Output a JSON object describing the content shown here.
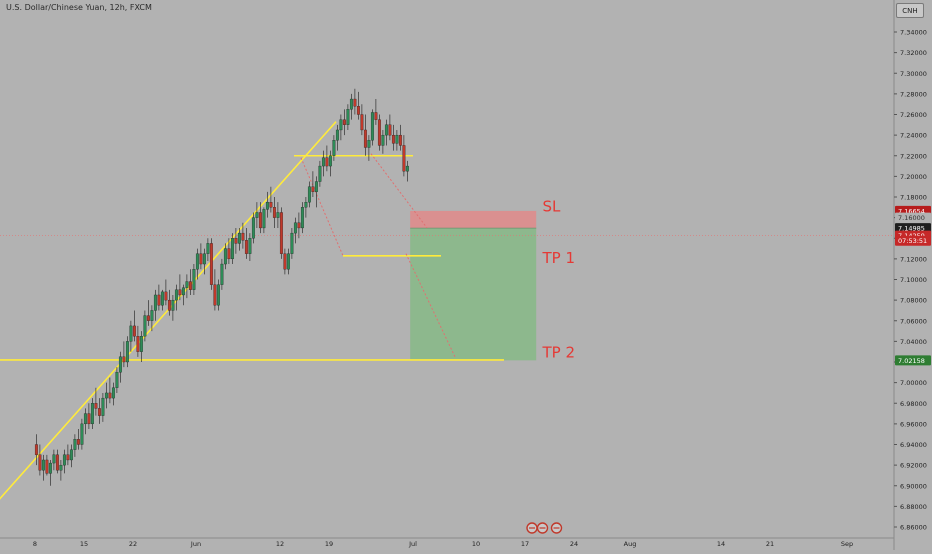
{
  "header": {
    "symbol_title": "U.S. Dollar/Chinese Yuan, 12h, FXCM",
    "currency_badge": "CNH"
  },
  "colors": {
    "background": "#b2b2b2",
    "bull_candle": "#2e8b57",
    "bear_candle": "#c0392b",
    "trend_line": "#ffeb3b",
    "label_red": "#e53935",
    "stop_zone": "#e08a8a",
    "target_zone": "#86b886",
    "current_price_line": "#e57373",
    "projection_line": "#e07070"
  },
  "chart_data": {
    "type": "candlestick",
    "title": "U.S. Dollar/Chinese Yuan, 12h, FXCM",
    "xlabel": "",
    "ylabel": "",
    "ylim": [
      6.85,
      7.36
    ],
    "grid": false,
    "y_ticks": [
      "7.34000",
      "7.32000",
      "7.30000",
      "7.28000",
      "7.26000",
      "7.24000",
      "7.22000",
      "7.20000",
      "7.18000",
      "7.16000",
      "7.14000",
      "7.12000",
      "7.10000",
      "7.08000",
      "7.06000",
      "7.04000",
      "7.02000",
      "7.00000",
      "6.98000",
      "6.96000",
      "6.94000",
      "6.92000",
      "6.90000",
      "6.88000",
      "6.86000"
    ],
    "x_ticks": [
      {
        "label": "8",
        "x": 8
      },
      {
        "label": "15",
        "x": 15
      },
      {
        "label": "22",
        "x": 22
      },
      {
        "label": "Jun",
        "x": 31
      },
      {
        "label": "12",
        "x": 43
      },
      {
        "label": "19",
        "x": 50
      },
      {
        "label": "Jul",
        "x": 62
      },
      {
        "label": "10",
        "x": 71
      },
      {
        "label": "17",
        "x": 78
      },
      {
        "label": "24",
        "x": 85
      },
      {
        "label": "Aug",
        "x": 93
      },
      {
        "label": "14",
        "x": 106
      },
      {
        "label": "21",
        "x": 113
      },
      {
        "label": "Sep",
        "x": 124
      }
    ],
    "x_range": [
      4.5,
      133
    ],
    "candles": [
      [
        4.0,
        6.94,
        6.95,
        6.92,
        6.93
      ],
      [
        4.5,
        6.93,
        6.94,
        6.91,
        6.915
      ],
      [
        5.0,
        6.915,
        6.93,
        6.905,
        6.925
      ],
      [
        5.5,
        6.925,
        6.93,
        6.91,
        6.912
      ],
      [
        6.0,
        6.912,
        6.925,
        6.9,
        6.922
      ],
      [
        6.5,
        6.922,
        6.935,
        6.915,
        6.93
      ],
      [
        7.0,
        6.93,
        6.935,
        6.912,
        6.915
      ],
      [
        7.5,
        6.915,
        6.925,
        6.905,
        6.92
      ],
      [
        8.0,
        6.92,
        6.935,
        6.912,
        6.93
      ],
      [
        8.5,
        6.93,
        6.94,
        6.92,
        6.925
      ],
      [
        9.0,
        6.925,
        6.94,
        6.918,
        6.935
      ],
      [
        9.5,
        6.935,
        6.95,
        6.928,
        6.945
      ],
      [
        10.0,
        6.945,
        6.955,
        6.935,
        6.94
      ],
      [
        10.5,
        6.94,
        6.965,
        6.935,
        6.96
      ],
      [
        11.0,
        6.96,
        6.975,
        6.95,
        6.97
      ],
      [
        11.5,
        6.97,
        6.98,
        6.955,
        6.96
      ],
      [
        12.0,
        6.96,
        6.985,
        6.955,
        6.98
      ],
      [
        12.5,
        6.98,
        6.995,
        6.968,
        6.975
      ],
      [
        13.0,
        6.975,
        6.985,
        6.96,
        6.968
      ],
      [
        13.5,
        6.968,
        6.99,
        6.962,
        6.985
      ],
      [
        14.0,
        6.985,
        7.0,
        6.975,
        6.99
      ],
      [
        14.5,
        6.99,
        7.005,
        6.98,
        6.985
      ],
      [
        15.0,
        6.985,
        7.0,
        6.978,
        6.995
      ],
      [
        15.5,
        6.995,
        7.015,
        6.99,
        7.01
      ],
      [
        16.0,
        7.01,
        7.03,
        7.0,
        7.025
      ],
      [
        16.5,
        7.025,
        7.04,
        7.015,
        7.02
      ],
      [
        17.0,
        7.02,
        7.045,
        7.015,
        7.04
      ],
      [
        17.5,
        7.04,
        7.06,
        7.03,
        7.055
      ],
      [
        18.0,
        7.055,
        7.07,
        7.04,
        7.045
      ],
      [
        18.5,
        7.045,
        7.055,
        7.025,
        7.03
      ],
      [
        19.0,
        7.03,
        7.05,
        7.02,
        7.045
      ],
      [
        19.5,
        7.045,
        7.07,
        7.04,
        7.065
      ],
      [
        20.0,
        7.065,
        7.08,
        7.055,
        7.06
      ],
      [
        20.5,
        7.06,
        7.075,
        7.05,
        7.07
      ],
      [
        21.0,
        7.07,
        7.09,
        7.06,
        7.085
      ],
      [
        21.5,
        7.085,
        7.095,
        7.07,
        7.075
      ],
      [
        22.0,
        7.075,
        7.09,
        7.07,
        7.088
      ],
      [
        22.5,
        7.088,
        7.1,
        7.075,
        7.08
      ],
      [
        23.0,
        7.08,
        7.09,
        7.065,
        7.07
      ],
      [
        23.5,
        7.07,
        7.085,
        7.06,
        7.08
      ],
      [
        24.0,
        7.08,
        7.095,
        7.07,
        7.09
      ],
      [
        24.5,
        7.09,
        7.105,
        7.08,
        7.085
      ],
      [
        25.0,
        7.085,
        7.095,
        7.075,
        7.092
      ],
      [
        25.5,
        7.092,
        7.105,
        7.082,
        7.098
      ],
      [
        26.0,
        7.098,
        7.11,
        7.085,
        7.09
      ],
      [
        26.5,
        7.09,
        7.115,
        7.085,
        7.11
      ],
      [
        27.0,
        7.11,
        7.13,
        7.1,
        7.125
      ],
      [
        27.5,
        7.125,
        7.135,
        7.11,
        7.115
      ],
      [
        28.0,
        7.115,
        7.13,
        7.105,
        7.125
      ],
      [
        28.5,
        7.125,
        7.14,
        7.118,
        7.135
      ],
      [
        29.0,
        7.135,
        7.14,
        7.09,
        7.095
      ],
      [
        29.5,
        7.095,
        7.11,
        7.07,
        7.075
      ],
      [
        30.0,
        7.075,
        7.1,
        7.07,
        7.095
      ],
      [
        30.5,
        7.095,
        7.12,
        7.09,
        7.115
      ],
      [
        31.0,
        7.115,
        7.135,
        7.11,
        7.13
      ],
      [
        31.5,
        7.13,
        7.14,
        7.115,
        7.12
      ],
      [
        32.0,
        7.12,
        7.145,
        7.115,
        7.14
      ],
      [
        32.5,
        7.14,
        7.15,
        7.125,
        7.135
      ],
      [
        33.0,
        7.135,
        7.15,
        7.128,
        7.145
      ],
      [
        33.5,
        7.145,
        7.155,
        7.13,
        7.138
      ],
      [
        34.0,
        7.138,
        7.15,
        7.12,
        7.125
      ],
      [
        34.5,
        7.125,
        7.145,
        7.118,
        7.14
      ],
      [
        35.0,
        7.14,
        7.165,
        7.135,
        7.16
      ],
      [
        35.5,
        7.16,
        7.175,
        7.15,
        7.165
      ],
      [
        36.0,
        7.165,
        7.175,
        7.145,
        7.15
      ],
      [
        36.5,
        7.15,
        7.17,
        7.145,
        7.168
      ],
      [
        37.0,
        7.168,
        7.185,
        7.16,
        7.175
      ],
      [
        37.5,
        7.175,
        7.19,
        7.165,
        7.17
      ],
      [
        38.0,
        7.17,
        7.18,
        7.15,
        7.16
      ],
      [
        38.5,
        7.16,
        7.175,
        7.15,
        7.165
      ],
      [
        39.0,
        7.165,
        7.17,
        7.12,
        7.125
      ],
      [
        39.5,
        7.125,
        7.13,
        7.105,
        7.11
      ],
      [
        40.0,
        7.11,
        7.13,
        7.105,
        7.125
      ],
      [
        40.5,
        7.125,
        7.15,
        7.12,
        7.145
      ],
      [
        41.0,
        7.145,
        7.16,
        7.135,
        7.155
      ],
      [
        41.5,
        7.155,
        7.165,
        7.14,
        7.15
      ],
      [
        42.0,
        7.15,
        7.175,
        7.145,
        7.17
      ],
      [
        42.5,
        7.17,
        7.18,
        7.16,
        7.175
      ],
      [
        43.0,
        7.175,
        7.195,
        7.17,
        7.19
      ],
      [
        43.5,
        7.19,
        7.205,
        7.18,
        7.185
      ],
      [
        44.0,
        7.185,
        7.2,
        7.17,
        7.195
      ],
      [
        44.5,
        7.195,
        7.215,
        7.19,
        7.21
      ],
      [
        45.0,
        7.21,
        7.225,
        7.2,
        7.218
      ],
      [
        45.5,
        7.218,
        7.23,
        7.205,
        7.21
      ],
      [
        46.0,
        7.21,
        7.225,
        7.2,
        7.22
      ],
      [
        46.5,
        7.22,
        7.24,
        7.215,
        7.235
      ],
      [
        47.0,
        7.235,
        7.25,
        7.225,
        7.245
      ],
      [
        47.5,
        7.245,
        7.26,
        7.235,
        7.255
      ],
      [
        48.0,
        7.255,
        7.265,
        7.24,
        7.25
      ],
      [
        48.5,
        7.25,
        7.27,
        7.245,
        7.265
      ],
      [
        49.0,
        7.265,
        7.28,
        7.255,
        7.275
      ],
      [
        49.5,
        7.275,
        7.285,
        7.26,
        7.268
      ],
      [
        50.0,
        7.268,
        7.282,
        7.255,
        7.26
      ],
      [
        50.5,
        7.26,
        7.27,
        7.24,
        7.245
      ],
      [
        51.0,
        7.245,
        7.26,
        7.22,
        7.228
      ],
      [
        51.5,
        7.228,
        7.24,
        7.215,
        7.235
      ],
      [
        52.0,
        7.235,
        7.265,
        7.23,
        7.262
      ],
      [
        52.5,
        7.262,
        7.275,
        7.25,
        7.255
      ],
      [
        53.0,
        7.255,
        7.26,
        7.225,
        7.23
      ],
      [
        53.5,
        7.23,
        7.245,
        7.222,
        7.24
      ],
      [
        54.0,
        7.24,
        7.255,
        7.23,
        7.25
      ],
      [
        54.5,
        7.25,
        7.26,
        7.235,
        7.24
      ],
      [
        55.0,
        7.24,
        7.25,
        7.225,
        7.232
      ],
      [
        55.5,
        7.232,
        7.245,
        7.225,
        7.24
      ],
      [
        56.0,
        7.24,
        7.25,
        7.225,
        7.23
      ],
      [
        56.5,
        7.23,
        7.24,
        7.2,
        7.205
      ],
      [
        57.0,
        7.205,
        7.215,
        7.195,
        7.21
      ]
    ],
    "trend_lines": [
      {
        "from": [
          2,
          6.88
        ],
        "to": [
          51,
          7.253
        ]
      },
      {
        "from": [
          -2,
          7.022
        ],
        "to": [
          75,
          7.022
        ]
      },
      {
        "from": [
          45,
          7.22
        ],
        "to": [
          62,
          7.22
        ]
      },
      {
        "from": [
          52,
          7.123
        ],
        "to": [
          66,
          7.123
        ]
      }
    ],
    "projection_lines": [
      {
        "from": [
          46,
          7.218
        ],
        "to": [
          52,
          7.123
        ]
      },
      {
        "from": [
          56,
          7.222
        ],
        "to": [
          64,
          7.15
        ]
      },
      {
        "from": [
          61,
          7.125
        ],
        "to": [
          68,
          7.025
        ]
      }
    ],
    "position": {
      "x_start": 61,
      "x_end": 79,
      "entry": 7.1498,
      "stop": 7.1665,
      "target": 7.0216
    },
    "annotations": [
      {
        "text": "SL",
        "x": 80.5,
        "y": 7.172
      },
      {
        "text": "TP 1",
        "x": 80.5,
        "y": 7.122
      },
      {
        "text": "TP 2",
        "x": 80.5,
        "y": 7.03
      }
    ],
    "price_tags": [
      {
        "label": "7.16654",
        "value": 7.1665,
        "bg": "#b71c1c",
        "fg": "#ffffff"
      },
      {
        "label": "7.16000",
        "value": 7.16,
        "bg": "#b2b2b2",
        "fg": "#333333"
      },
      {
        "label": "7.14985",
        "value": 7.1498,
        "bg": "#1f1f1f",
        "fg": "#ffffff"
      },
      {
        "label": "7.14259",
        "value": 7.1426,
        "bg": "#c62828",
        "fg": "#ffffff"
      },
      {
        "label": "07:53:51",
        "value": 7.1376,
        "bg": "#c62828",
        "fg": "#ffffff"
      },
      {
        "label": "7.02158",
        "value": 7.0216,
        "bg": "#2e7d32",
        "fg": "#ffffff"
      }
    ],
    "current_price": 7.1426,
    "event_markers": [
      59,
      60.5,
      62.5
    ]
  }
}
